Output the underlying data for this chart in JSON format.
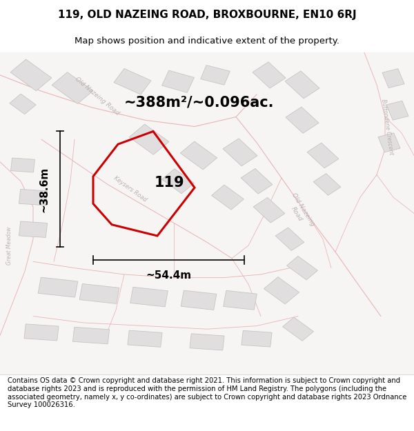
{
  "title_line1": "119, OLD NAZEING ROAD, BROXBOURNE, EN10 6RJ",
  "title_line2": "Map shows position and indicative extent of the property.",
  "area_text": "~388m²/~0.096ac.",
  "label_119": "119",
  "dim_width": "~54.4m",
  "dim_height": "~38.6m",
  "footer_text": "Contains OS data © Crown copyright and database right 2021. This information is subject to Crown copyright and database rights 2023 and is reproduced with the permission of HM Land Registry. The polygons (including the associated geometry, namely x, y co-ordinates) are subject to Crown copyright and database rights 2023 Ordnance Survey 100026316.",
  "map_bg": "#f7f5f3",
  "road_color": "#e8b4b4",
  "building_fill": "#e0dede",
  "building_edge": "#c8c4c4",
  "property_color": "#cc0000",
  "property_linewidth": 2.2,
  "road_label_color": "#b8b2b2",
  "road_lw": 0.8,
  "figsize": [
    6.0,
    6.25
  ],
  "dpi": 100,
  "title_fontsize": 11,
  "subtitle_fontsize": 9.5,
  "area_fontsize": 15,
  "label_fontsize": 15,
  "dim_fontsize": 11,
  "footer_fontsize": 7.2
}
